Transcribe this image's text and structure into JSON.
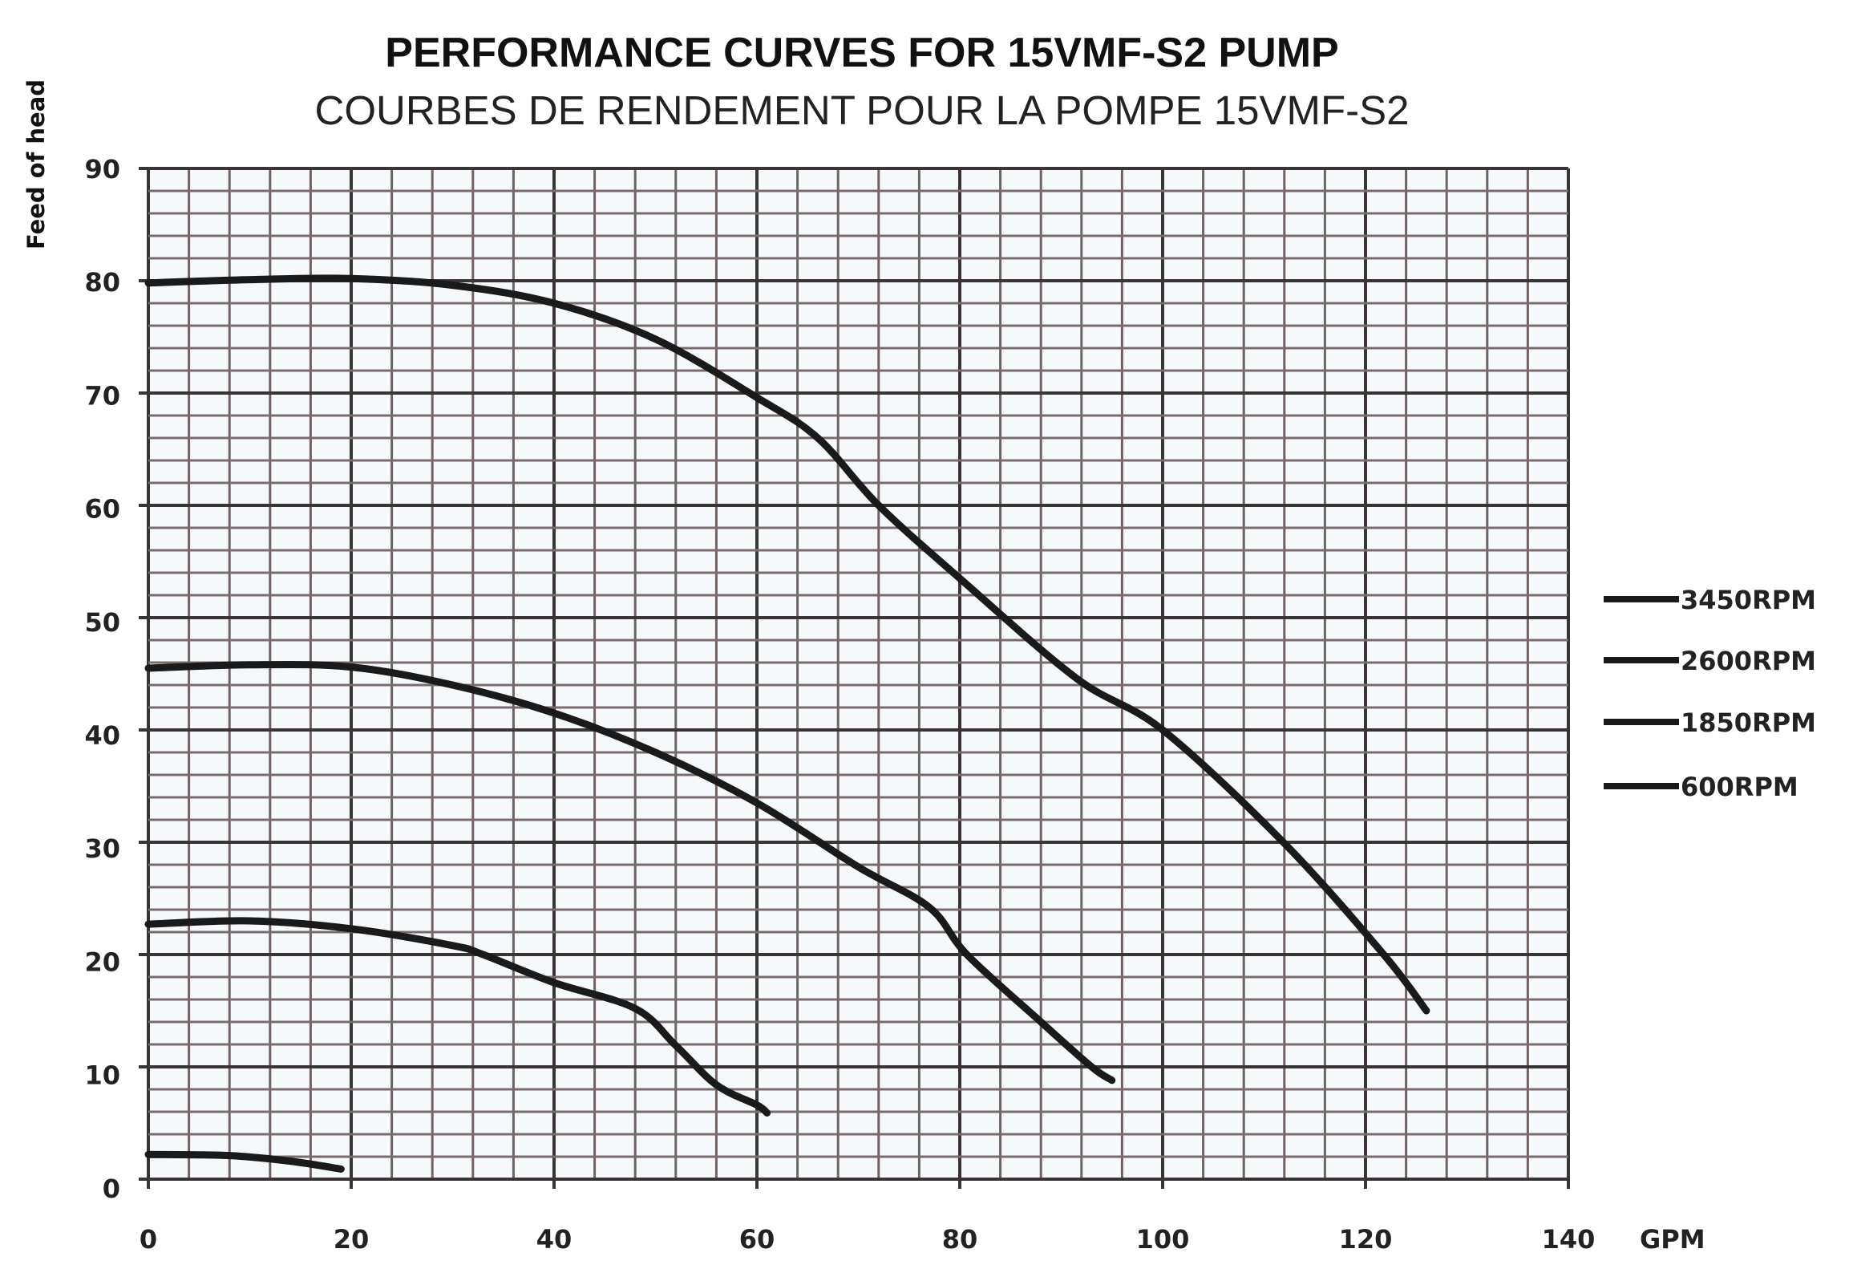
{
  "chart_data": {
    "type": "line",
    "title": "PERFORMANCE CURVES FOR 15VMF-S2 PUMP",
    "subtitle": "COURBES DE RENDEMENT POUR LA POMPE 15VMF-S2",
    "xlabel": "GPM",
    "ylabel": "Feed of head",
    "xlim": [
      0,
      140
    ],
    "ylim": [
      0,
      90
    ],
    "xticks": [
      0,
      20,
      40,
      60,
      80,
      100,
      120,
      140
    ],
    "yticks": [
      0,
      10,
      20,
      30,
      40,
      50,
      60,
      70,
      80,
      90
    ],
    "x_minor_step": 4,
    "y_minor_step": 2,
    "grid": true,
    "legend_position": "right",
    "line_color": "#1a1a1a",
    "series": [
      {
        "name": "3450RPM",
        "points": [
          [
            0,
            79.8
          ],
          [
            10,
            80.1
          ],
          [
            20,
            80.2
          ],
          [
            30,
            79.6
          ],
          [
            40,
            78
          ],
          [
            50,
            74.8
          ],
          [
            60,
            69.6
          ],
          [
            66,
            66
          ],
          [
            72,
            60
          ],
          [
            80,
            53.5
          ],
          [
            91.5,
            44.6
          ],
          [
            100,
            40
          ],
          [
            111.9,
            30
          ],
          [
            121.8,
            20
          ],
          [
            126,
            15
          ]
        ]
      },
      {
        "name": "2600RPM",
        "points": [
          [
            0,
            45.5
          ],
          [
            10,
            45.8
          ],
          [
            20,
            45.6
          ],
          [
            30,
            44
          ],
          [
            40,
            41.5
          ],
          [
            50,
            38
          ],
          [
            60,
            33.5
          ],
          [
            70,
            27.8
          ],
          [
            77,
            24.2
          ],
          [
            80.7,
            20
          ],
          [
            88,
            14
          ],
          [
            93,
            10
          ],
          [
            95,
            8.8
          ]
        ]
      },
      {
        "name": "1850RPM",
        "points": [
          [
            0,
            22.7
          ],
          [
            10,
            23
          ],
          [
            20,
            22.3
          ],
          [
            30,
            20.8
          ],
          [
            33,
            20
          ],
          [
            40,
            17.5
          ],
          [
            48,
            15.2
          ],
          [
            52,
            11.9
          ],
          [
            56,
            8.4
          ],
          [
            60,
            6.6
          ],
          [
            61,
            5.9
          ]
        ]
      },
      {
        "name": "600RPM",
        "points": [
          [
            0,
            2.2
          ],
          [
            8,
            2.1
          ],
          [
            14,
            1.6
          ],
          [
            19,
            0.9
          ]
        ]
      }
    ]
  }
}
